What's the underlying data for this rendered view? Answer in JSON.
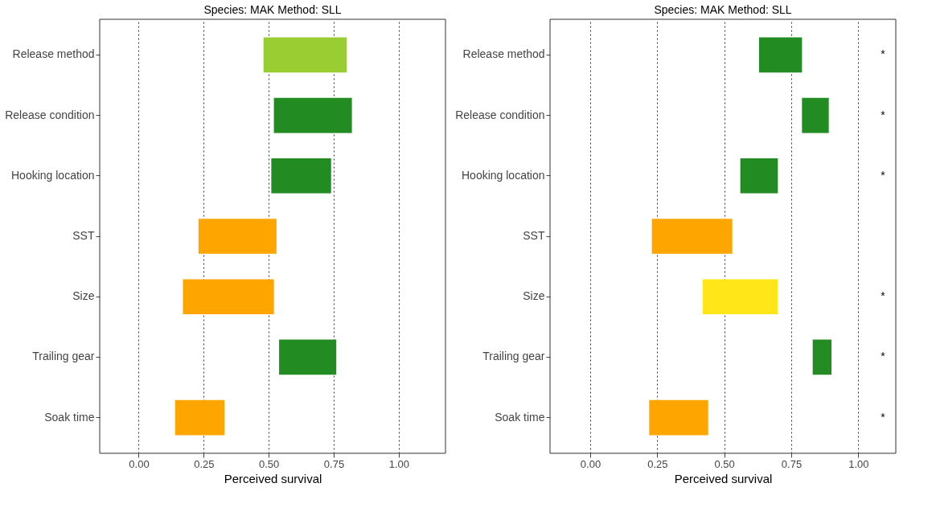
{
  "chart_data": [
    {
      "type": "bar",
      "orientation": "horizontal",
      "title": "Species: MAK  Method: SLL",
      "xlabel": "Perceived survival",
      "categories": [
        "Release method",
        "Release condition",
        "Hooking location",
        "SST",
        "Size",
        "Trailing gear",
        "Soak time"
      ],
      "base": [
        0.48,
        0.52,
        0.51,
        0.23,
        0.17,
        0.54,
        0.14
      ],
      "values": [
        0.32,
        0.3,
        0.23,
        0.3,
        0.35,
        0.22,
        0.19
      ],
      "colors": [
        "#9acd32",
        "#228b22",
        "#228b22",
        "#ffa500",
        "#ffa500",
        "#228b22",
        "#ffa500"
      ],
      "xlim": [
        -0.15,
        1.18
      ],
      "xticks": [
        {
          "value": 0,
          "label": "0.00"
        },
        {
          "value": 0.25,
          "label": "0.25"
        },
        {
          "value": 0.5,
          "label": "0.50"
        },
        {
          "value": 0.75,
          "label": "0.75"
        },
        {
          "value": 1,
          "label": "1.00"
        }
      ],
      "grid": "x"
    },
    {
      "type": "bar",
      "orientation": "horizontal",
      "title": "Species: MAK  Method: SLL",
      "xlabel": "Perceived survival",
      "categories": [
        "Release method",
        "Release condition",
        "Hooking location",
        "SST",
        "Size",
        "Trailing gear",
        "Soak time"
      ],
      "base": [
        0.63,
        0.79,
        0.56,
        0.23,
        0.42,
        0.83,
        0.22
      ],
      "values": [
        0.16,
        0.1,
        0.14,
        0.3,
        0.28,
        0.07,
        0.22
      ],
      "colors": [
        "#228b22",
        "#228b22",
        "#228b22",
        "#ffa500",
        "#ffe619",
        "#228b22",
        "#ffa500"
      ],
      "xlim": [
        -0.15,
        1.14
      ],
      "xticks": [
        {
          "value": 0,
          "label": "0.00"
        },
        {
          "value": 0.25,
          "label": "0.25"
        },
        {
          "value": 0.5,
          "label": "0.50"
        },
        {
          "value": 0.75,
          "label": "0.75"
        },
        {
          "value": 1,
          "label": "1.00"
        }
      ],
      "grid": "x",
      "annotations": [
        "*",
        "*",
        "*",
        null,
        "*",
        "*",
        "*"
      ]
    }
  ]
}
